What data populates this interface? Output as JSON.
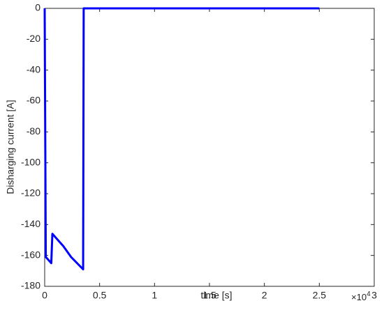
{
  "chart_data": {
    "type": "line",
    "x_label": "time [s]",
    "y_label": "Disharging current [A]",
    "x_multiplier": {
      "base": "×10",
      "exponent": "4"
    },
    "x": [
      0,
      0.01,
      0.06,
      0.07,
      0.17,
      0.24,
      0.35,
      0.355,
      2.5
    ],
    "series": [
      {
        "name": "Discharging current",
        "color": "#0000ff",
        "values": [
          0,
          -161,
          -165,
          -146,
          -154,
          -161,
          -169,
          0,
          0
        ]
      }
    ],
    "xlim": [
      0,
      3
    ],
    "xticks": [
      0,
      0.5,
      1,
      1.5,
      2,
      2.5,
      3
    ],
    "ylim": [
      -180,
      0
    ],
    "yticks": [
      -180,
      -160,
      -140,
      -120,
      -100,
      -80,
      -60,
      -40,
      -20,
      0
    ],
    "grid": false,
    "legend": false
  }
}
